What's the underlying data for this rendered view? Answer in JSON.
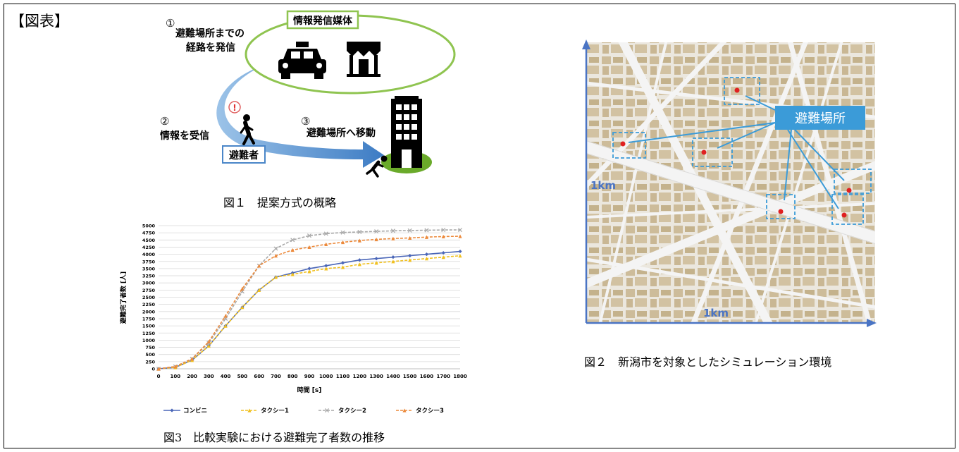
{
  "section_label": "【図表】",
  "fig1": {
    "caption": "図１　提案方式の概略",
    "media_label": "情報発信媒体",
    "step1_num": "①",
    "step1_line1": "避難場所までの",
    "step1_line2": "経路を発信",
    "step2_num": "②",
    "step2_text": "情報を受信",
    "step3_num": "③",
    "step3_text": "避難場所へ移動",
    "evacuee_label": "避難者",
    "alert_mark": "!",
    "icons": [
      "taxi-icon",
      "store-icon",
      "walking-person-icon",
      "building-icon",
      "running-person-icon"
    ],
    "colors": {
      "ellipse": "#8fc450",
      "arrow": "#4a86c8",
      "ground": "#6aaa2a",
      "label_box": "#4a86c8"
    }
  },
  "fig2": {
    "caption": "図２　新潟市を対象としたシミュレーション環境",
    "shelter_label": "避難場所",
    "scale_vertical": "1km",
    "scale_horizontal": "1km",
    "colors": {
      "accent": "#3b9bd8",
      "axis": "#4a74c4",
      "building": "#cdbc9a",
      "road": "#ffffff"
    }
  },
  "fig3": {
    "caption": "図3　比較実験における避難完了者数の推移",
    "chart_data": {
      "type": "line",
      "xlabel": "時間 [s]",
      "ylabel": "避難完了者数 [人]",
      "x": [
        0,
        100,
        200,
        300,
        400,
        500,
        600,
        700,
        800,
        900,
        1000,
        1100,
        1200,
        1300,
        1400,
        1500,
        1600,
        1700,
        1800
      ],
      "xlim": [
        0,
        1800
      ],
      "ylim": [
        0,
        5000
      ],
      "yticks": [
        0,
        250,
        500,
        750,
        1000,
        1250,
        1500,
        1750,
        2000,
        2250,
        2500,
        2750,
        3000,
        3250,
        3500,
        3750,
        4000,
        4250,
        4500,
        4750,
        5000
      ],
      "grid": true,
      "legend": "bottom",
      "series": [
        {
          "name": "コンビニ",
          "color": "#4a66b8",
          "marker": "diamond",
          "values": [
            0,
            50,
            300,
            800,
            1500,
            2150,
            2750,
            3200,
            3350,
            3500,
            3600,
            3700,
            3800,
            3850,
            3900,
            3950,
            4000,
            4050,
            4100
          ]
        },
        {
          "name": "タクシー1",
          "color": "#f0c020",
          "marker": "triangle",
          "values": [
            0,
            50,
            300,
            800,
            1500,
            2150,
            2750,
            3200,
            3300,
            3400,
            3500,
            3550,
            3650,
            3700,
            3750,
            3800,
            3850,
            3900,
            3950
          ]
        },
        {
          "name": "タクシー2",
          "color": "#a8a8a8",
          "marker": "x",
          "values": [
            0,
            80,
            350,
            900,
            1750,
            2700,
            3600,
            4200,
            4500,
            4650,
            4720,
            4760,
            4780,
            4800,
            4820,
            4830,
            4840,
            4850,
            4850
          ]
        },
        {
          "name": "タクシー3",
          "color": "#ec8a3c",
          "marker": "triangle",
          "values": [
            0,
            80,
            350,
            950,
            1850,
            2800,
            3600,
            3950,
            4150,
            4250,
            4350,
            4420,
            4480,
            4520,
            4550,
            4570,
            4600,
            4620,
            4630
          ]
        }
      ]
    }
  }
}
